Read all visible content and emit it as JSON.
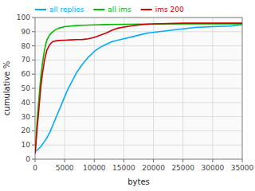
{
  "chart_data": {
    "type": "line",
    "xlabel": "bytes",
    "ylabel": "cumulative %",
    "xlim": [
      0,
      35000
    ],
    "ylim": [
      0,
      100
    ],
    "xticks": [
      0,
      5000,
      10000,
      15000,
      20000,
      25000,
      30000,
      35000
    ],
    "yticks": [
      0,
      10,
      20,
      30,
      40,
      50,
      60,
      70,
      80,
      90,
      100
    ],
    "grid": true,
    "legend": "upper left",
    "series": [
      {
        "name": "all replies",
        "color": "#00aaff",
        "x": [
          0,
          200,
          500,
          1000,
          1500,
          2000,
          2500,
          3000,
          3500,
          4000,
          4500,
          5000,
          5500,
          6000,
          6500,
          7000,
          7500,
          8000,
          9000,
          10000,
          11000,
          12000,
          13000,
          14000,
          15000,
          17000,
          19000,
          21000,
          23000,
          25000,
          27000,
          30000,
          33000,
          35000
        ],
        "values": [
          5,
          6,
          7,
          9,
          12,
          15,
          19,
          24,
          29,
          34,
          39,
          44,
          49,
          53,
          57,
          61,
          64,
          67,
          72,
          76,
          79,
          81,
          83,
          84,
          85,
          87,
          89,
          90,
          91,
          92,
          93,
          93.5,
          94,
          95
        ]
      },
      {
        "name": "all ims",
        "color": "#00bb00",
        "x": [
          0,
          100,
          200,
          400,
          600,
          800,
          1000,
          1200,
          1400,
          1600,
          1800,
          2000,
          2500,
          3000,
          3500,
          4000,
          5000,
          6000,
          7000,
          8000,
          10000,
          12000,
          15000,
          20000,
          25000,
          35000
        ],
        "values": [
          5,
          10,
          18,
          30,
          40,
          50,
          59,
          66,
          72,
          77,
          81,
          84,
          88,
          90,
          91.5,
          92.5,
          93.5,
          94,
          94.3,
          94.5,
          94.8,
          95,
          95.2,
          95.4,
          95.5,
          95.5
        ]
      },
      {
        "name": "ims 200",
        "color": "#cc0000",
        "x": [
          0,
          100,
          200,
          400,
          600,
          800,
          1000,
          1300,
          1600,
          2000,
          2500,
          3000,
          3500,
          4000,
          5000,
          6000,
          7000,
          8000,
          9000,
          10000,
          12000,
          13000,
          14000,
          16000,
          18000,
          20000,
          25000,
          35000
        ],
        "values": [
          4,
          8,
          14,
          24,
          33,
          43,
          52,
          62,
          70,
          77,
          81,
          83,
          83.5,
          83.8,
          84,
          84.2,
          84.4,
          84.5,
          85,
          86,
          89,
          91,
          92.5,
          94,
          95,
          95.5,
          96,
          96
        ]
      }
    ]
  }
}
